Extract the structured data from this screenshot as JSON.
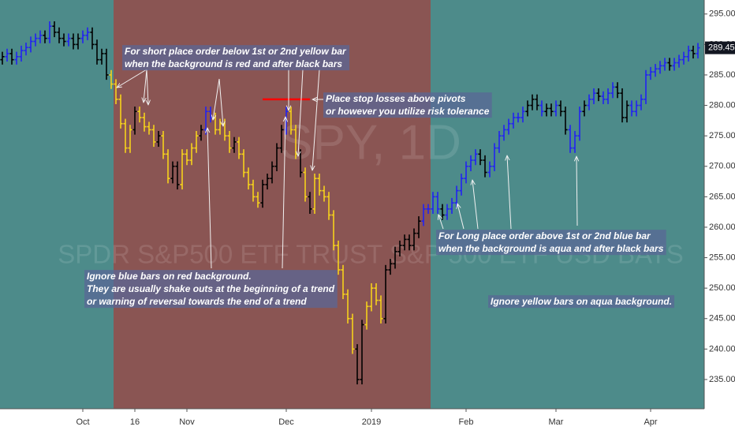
{
  "chart_data": {
    "type": "ohlc",
    "watermark": "SPY, 1D",
    "watermark_subtitle": "SPDR S&P500 ETF TRUST S&P 500 ETF USD BATS",
    "categories": [
      null,
      null,
      null,
      null,
      null,
      null,
      null,
      null,
      null,
      null,
      null,
      null,
      null,
      null,
      null,
      null,
      null,
      "Oct",
      null,
      null,
      null,
      null,
      null,
      null,
      null,
      null,
      null,
      null,
      "16",
      null,
      null,
      null,
      null,
      null,
      null,
      null,
      null,
      null,
      null,
      "Nov",
      null,
      null,
      null,
      null,
      null,
      null,
      null,
      null,
      null,
      null,
      null,
      null,
      null,
      null,
      null,
      null,
      null,
      null,
      null,
      null,
      "Dec",
      null,
      null,
      null,
      null,
      null,
      null,
      null,
      null,
      null,
      null,
      null,
      null,
      null,
      null,
      null,
      null,
      null,
      "2019",
      null,
      null,
      null,
      null,
      null,
      null,
      null,
      null,
      null,
      null,
      null,
      null,
      null,
      null,
      null,
      null,
      null,
      null,
      null,
      "Feb",
      null,
      null,
      null,
      null,
      null,
      null,
      null,
      null,
      null,
      null,
      null,
      null,
      null,
      null,
      null,
      null,
      null,
      null,
      "Mar",
      null,
      null,
      null,
      null,
      null,
      null,
      null,
      null,
      null,
      null,
      null,
      null,
      null,
      null,
      null,
      null,
      null,
      null,
      null,
      "Apr",
      null,
      null,
      null,
      null,
      null,
      null,
      null,
      null,
      null,
      null
    ],
    "open": [
      287.5,
      288,
      288.5,
      287.5,
      288,
      289,
      289.5,
      290.5,
      291,
      291.5,
      291,
      293,
      292,
      291,
      290.5,
      291,
      290,
      291,
      291.5,
      292,
      290,
      287.5,
      288.5,
      285,
      283.5,
      281,
      277,
      273,
      276,
      279,
      278,
      276.5,
      276,
      274,
      275,
      272,
      268,
      270,
      267,
      272,
      271,
      273,
      275,
      276,
      279,
      278,
      276,
      277,
      275,
      273,
      274,
      272,
      269,
      267,
      265,
      264,
      267,
      268,
      270,
      273,
      276,
      279,
      276,
      272,
      269,
      265,
      263,
      268,
      266,
      265,
      262,
      257,
      253,
      249,
      245,
      240,
      235,
      244,
      247,
      250,
      248,
      245,
      253,
      254,
      256,
      257,
      258,
      257,
      259,
      261,
      263,
      263,
      265,
      263,
      262,
      263,
      264,
      266,
      268,
      270,
      271,
      272,
      271,
      269,
      270,
      273,
      275,
      276,
      277,
      278,
      278,
      279,
      280,
      281,
      280,
      279,
      279.5,
      279,
      280,
      279,
      276,
      273,
      275,
      279,
      280,
      281,
      282,
      281.5,
      281,
      282,
      283,
      282,
      278,
      280,
      279,
      280,
      281,
      285,
      285.5,
      286,
      286.5,
      287,
      286.5,
      287,
      287.5,
      288,
      289,
      288.5
    ],
    "high": [
      288.8,
      289.3,
      289.3,
      288.8,
      289.8,
      290.3,
      291.3,
      291.8,
      292.3,
      292.3,
      293.8,
      293.8,
      292.8,
      291.8,
      291.8,
      291.8,
      291.8,
      292.3,
      292.8,
      292.8,
      290.8,
      289.3,
      289.3,
      285.8,
      284.3,
      281.8,
      277.8,
      276.8,
      279.8,
      279.8,
      278.8,
      277.3,
      276.8,
      275.8,
      275.8,
      272.8,
      270.8,
      270.8,
      272.8,
      272.8,
      273.8,
      275.8,
      276.8,
      279.8,
      279.8,
      278.8,
      277.8,
      277.8,
      275.8,
      274.8,
      274.8,
      272.8,
      269.8,
      267.8,
      265.8,
      267.8,
      268.8,
      270.8,
      273.8,
      276.8,
      279.8,
      279.8,
      276.8,
      272.8,
      269.8,
      265.8,
      268.8,
      268.8,
      266.8,
      265.8,
      262.8,
      257.8,
      253.8,
      249.8,
      245.8,
      240.8,
      244.8,
      247.8,
      250.8,
      250.8,
      248.8,
      253.8,
      254.8,
      256.8,
      257.8,
      258.8,
      258.8,
      259.8,
      261.8,
      263.8,
      263.8,
      265.8,
      265.8,
      263.8,
      263.8,
      264.8,
      266.8,
      268.8,
      270.8,
      271.8,
      272.8,
      272.8,
      271.8,
      270.8,
      273.8,
      275.8,
      276.8,
      277.8,
      278.8,
      278.8,
      279.8,
      280.8,
      281.8,
      281.8,
      280.8,
      280.3,
      280.3,
      280.8,
      280.8,
      279.8,
      276.8,
      275.8,
      279.8,
      280.8,
      281.8,
      282.8,
      282.8,
      282.3,
      282.8,
      283.8,
      283.8,
      282.8,
      280.8,
      280.8,
      280.8,
      281.8,
      285.8,
      286.3,
      286.8,
      287.3,
      287.8,
      287.8,
      287.8,
      288.3,
      288.8,
      289.8,
      289.8,
      290.25
    ],
    "low": [
      286.7,
      287.2,
      286.7,
      286.7,
      287.2,
      288.2,
      288.7,
      289.7,
      290.2,
      290.2,
      290.2,
      291.2,
      290.2,
      289.7,
      289.7,
      289.2,
      289.2,
      290.2,
      290.7,
      289.2,
      286.7,
      286.7,
      284.2,
      282.7,
      280.2,
      276.2,
      272.2,
      272.2,
      275.2,
      277.2,
      275.7,
      275.2,
      273.2,
      273.2,
      271.2,
      267.2,
      267.2,
      266.2,
      266.2,
      270.2,
      270.2,
      272.2,
      274.2,
      275.2,
      277.2,
      275.2,
      275.2,
      274.2,
      272.2,
      272.2,
      271.2,
      268.2,
      266.2,
      264.2,
      263.2,
      263.2,
      266.2,
      267.2,
      269.2,
      272.2,
      275.2,
      275.2,
      271.2,
      268.2,
      264.2,
      262.2,
      262.2,
      265.2,
      264.2,
      261.2,
      256.2,
      252.2,
      248.2,
      244.2,
      239.2,
      234.2,
      234.2,
      243.2,
      246.2,
      247.2,
      244.2,
      244.2,
      252.2,
      253.2,
      255.2,
      256.2,
      256.2,
      256.2,
      258.2,
      260.2,
      262.2,
      262.2,
      262.2,
      261.2,
      261.2,
      262.2,
      263.2,
      265.2,
      267.2,
      269.2,
      270.2,
      270.2,
      268.2,
      268.2,
      269.2,
      272.2,
      274.2,
      275.2,
      276.2,
      277.2,
      277.2,
      278.2,
      279.2,
      279.2,
      278.2,
      278.2,
      278.2,
      278.2,
      278.2,
      275.2,
      272.2,
      272.2,
      274.2,
      278.2,
      279.2,
      280.2,
      280.7,
      280.2,
      280.2,
      281.2,
      281.2,
      277.2,
      277.2,
      278.2,
      278.2,
      279.2,
      280.2,
      284.2,
      284.7,
      285.2,
      285.7,
      285.7,
      285.7,
      286.2,
      286.7,
      287.2,
      287.7,
      287.7
    ],
    "close": [
      288,
      288.5,
      287.5,
      288,
      289,
      289.5,
      290.5,
      291,
      291.5,
      291,
      293,
      292,
      291,
      290.5,
      291,
      290,
      291,
      291.5,
      292,
      290,
      287.5,
      288.5,
      285,
      283.5,
      281,
      277,
      273,
      276,
      279,
      278,
      276.5,
      276,
      274,
      275,
      272,
      268,
      270,
      267,
      272,
      271,
      273,
      275,
      276,
      279,
      278,
      276,
      277,
      275,
      273,
      274,
      272,
      269,
      267,
      265,
      264,
      267,
      268,
      270,
      273,
      276,
      279,
      276,
      272,
      269,
      265,
      263,
      268,
      266,
      265,
      262,
      257,
      253,
      249,
      245,
      240,
      235,
      244,
      247,
      250,
      248,
      245,
      253,
      254,
      256,
      257,
      258,
      257,
      259,
      261,
      263,
      263,
      265,
      263,
      262,
      263,
      264,
      266,
      268,
      270,
      271,
      272,
      271,
      269,
      270,
      273,
      275,
      276,
      277,
      278,
      278,
      279,
      280,
      281,
      280,
      279,
      279.5,
      279,
      280,
      279,
      276,
      273,
      275,
      279,
      280,
      281,
      282,
      281.5,
      281,
      282,
      283,
      282,
      278,
      280,
      279,
      280,
      281,
      285,
      285.5,
      286,
      286.5,
      287,
      286.5,
      287,
      287.5,
      288,
      289,
      288.5,
      289.45
    ],
    "bar_colors": [
      "#000",
      "#2222f2",
      "#000",
      "#2222f2",
      "#2222f2",
      "#2222f2",
      "#2222f2",
      "#2222f2",
      "#2222f2",
      "#000",
      "#2222f2",
      "#000",
      "#000",
      "#000",
      "#2222f2",
      "#000",
      "#000",
      "#2222f2",
      "#2222f2",
      "#000",
      "#000",
      "#000",
      "#000",
      "#f5d21c",
      "#f5d21c",
      "#f5d21c",
      "#f5d21c",
      "#f5d21c",
      "#000",
      "#f5d21c",
      "#f5d21c",
      "#f5d21c",
      "#f5d21c",
      "#000",
      "#f5d21c",
      "#f5d21c",
      "#000",
      "#000",
      "#f5d21c",
      "#f5d21c",
      "#f5d21c",
      "#f5d21c",
      "#000",
      "#2222f2",
      "#2222f2",
      "#f5d21c",
      "#f5d21c",
      "#f5d21c",
      "#f5d21c",
      "#000",
      "#f5d21c",
      "#f5d21c",
      "#f5d21c",
      "#f5d21c",
      "#f5d21c",
      "#000",
      "#000",
      "#000",
      "#000",
      "#000",
      "#2222f2",
      "#f5d21c",
      "#f5d21c",
      "#000",
      "#f5d21c",
      "#000",
      "#f5d21c",
      "#f5d21c",
      "#f5d21c",
      "#f5d21c",
      "#f5d21c",
      "#f5d21c",
      "#f5d21c",
      "#f5d21c",
      "#f5d21c",
      "#000",
      "#000",
      "#f5d21c",
      "#f5d21c",
      "#f5d21c",
      "#f5d21c",
      "#000",
      "#000",
      "#000",
      "#000",
      "#000",
      "#000",
      "#000",
      "#000",
      "#2222f2",
      "#2222f2",
      "#2222f2",
      "#2222f2",
      "#000",
      "#2222f2",
      "#2222f2",
      "#2222f2",
      "#2222f2",
      "#2222f2",
      "#2222f2",
      "#2222f2",
      "#000",
      "#000",
      "#2222f2",
      "#2222f2",
      "#2222f2",
      "#2222f2",
      "#2222f2",
      "#2222f2",
      "#2222f2",
      "#2222f2",
      "#000",
      "#000",
      "#000",
      "#2222f2",
      "#000",
      "#000",
      "#2222f2",
      "#000",
      "#000",
      "#2222f2",
      "#2222f2",
      "#2222f2",
      "#000",
      "#2222f2",
      "#2222f2",
      "#000",
      "#2222f2",
      "#2222f2",
      "#2222f2",
      "#000",
      "#000",
      "#000",
      "#2222f2",
      "#2222f2",
      "#2222f2",
      "#2222f2",
      "#2222f2",
      "#2222f2",
      "#2222f2",
      "#2222f2",
      "#000",
      "#2222f2",
      "#2222f2",
      "#2222f2",
      "#2222f2",
      "#000",
      "#2222f2"
    ],
    "regions": [
      {
        "from": 0,
        "to": 23,
        "color": "#4d8b8a"
      },
      {
        "from": 24,
        "to": 90,
        "color": "#8a5553"
      },
      {
        "from": 91,
        "to": 147,
        "color": "#4d8b8a"
      }
    ],
    "stop_line": {
      "value": 281,
      "from": 55,
      "to": 65,
      "color": "#ff0000"
    },
    "ylim": [
      230.2,
      297.3
    ],
    "yticks": [
      {
        "value": 235,
        "label": "235.00"
      },
      {
        "value": 240,
        "label": "240.00"
      },
      {
        "value": 245,
        "label": "245.00"
      },
      {
        "value": 250,
        "label": "250.00"
      },
      {
        "value": 255,
        "label": "255.00"
      },
      {
        "value": 260,
        "label": "260.00"
      },
      {
        "value": 265,
        "label": "265.00"
      },
      {
        "value": 270,
        "label": "270.00"
      },
      {
        "value": 275,
        "label": "275.00"
      },
      {
        "value": 280,
        "label": "280.00"
      },
      {
        "value": 285,
        "label": "285.00"
      },
      {
        "value": 290,
        "label": "290.00"
      },
      {
        "value": 295,
        "label": "295.00"
      }
    ],
    "annotations": [
      {
        "lines": [
          "For short place order below 1st or 2nd yellow bar",
          "when the background is red and after black bars"
        ]
      },
      {
        "lines": [
          "Place stop losses above pivots",
          "or however you utilize risk tolerance"
        ]
      },
      {
        "lines": [
          "Ignore blue bars on red background.",
          "They are usually shake outs at the beginning of a trend",
          "or warning of reversal towards the end of a trend"
        ]
      },
      {
        "lines": [
          "For Long place order above 1st or 2nd blue bar",
          "when the background is aqua and after black bars"
        ]
      },
      {
        "lines": [
          "Ignore yellow bars on aqua background."
        ]
      }
    ]
  }
}
